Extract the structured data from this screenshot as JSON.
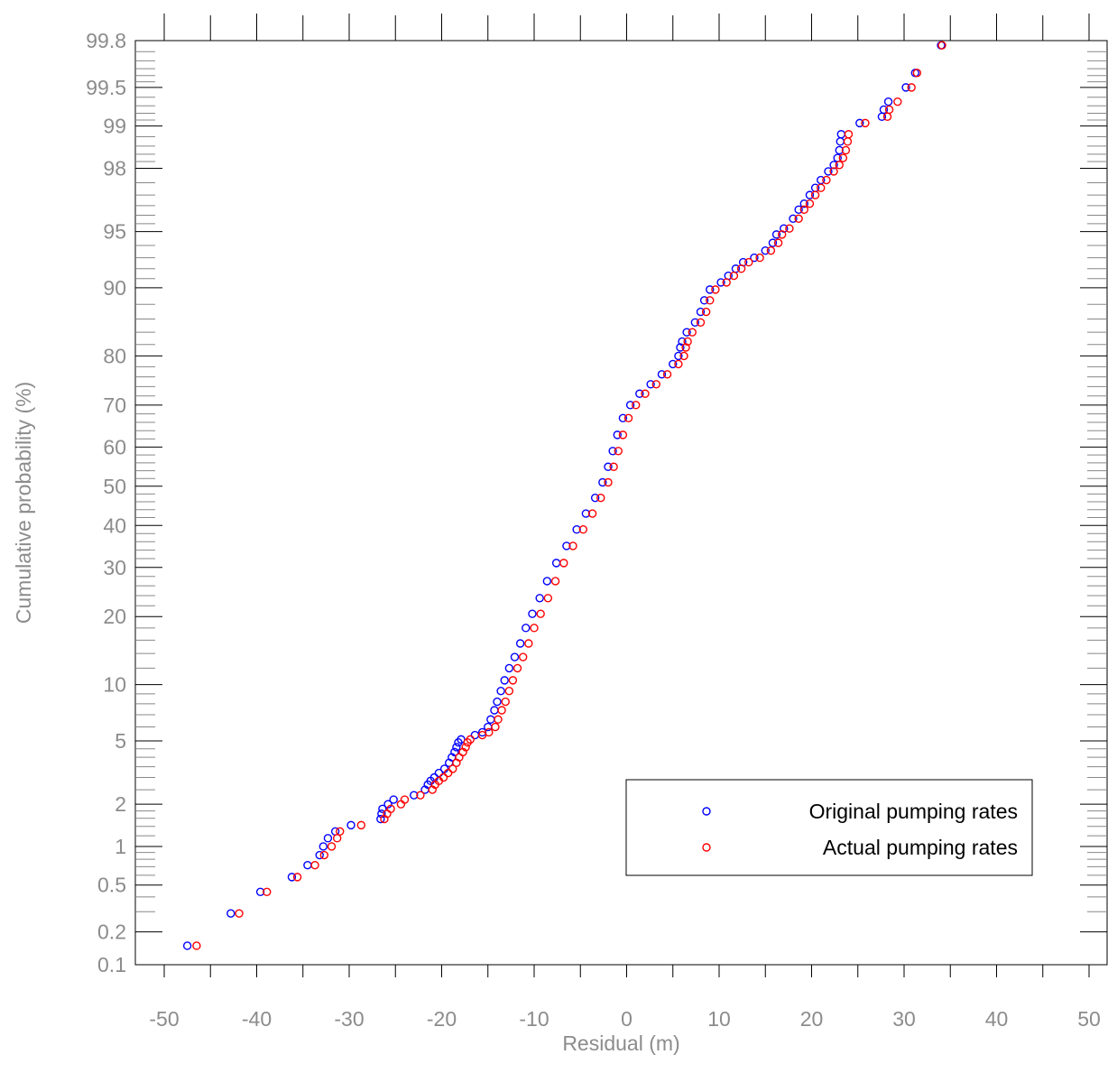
{
  "chart_data": {
    "type": "scatter",
    "title": "",
    "xlabel": "Residual (m)",
    "ylabel": "Cumulative probability (%)",
    "xlim": [
      -50,
      50
    ],
    "ylim": [
      0.1,
      99.8
    ],
    "y_scale": "normal-probability",
    "grid": false,
    "legend_position": "bottom-right",
    "x_ticks": [
      -50,
      -40,
      -30,
      -20,
      -10,
      0,
      10,
      20,
      30,
      40,
      50
    ],
    "y_ticks": [
      0.1,
      0.2,
      0.5,
      1,
      2,
      5,
      10,
      20,
      30,
      40,
      50,
      60,
      70,
      80,
      90,
      95,
      98,
      99,
      99.5,
      99.8
    ],
    "series": [
      {
        "name": "Original pumping rates",
        "color": "#0000ff",
        "marker": "open-circle",
        "points": [
          [
            -47.5,
            0.15
          ],
          [
            -42.8,
            0.29
          ],
          [
            -39.6,
            0.44
          ],
          [
            -36.2,
            0.58
          ],
          [
            -34.5,
            0.72
          ],
          [
            -33.2,
            0.86
          ],
          [
            -32.8,
            1.0
          ],
          [
            -32.3,
            1.15
          ],
          [
            -31.5,
            1.29
          ],
          [
            -29.8,
            1.43
          ],
          [
            -26.6,
            1.58
          ],
          [
            -26.5,
            1.72
          ],
          [
            -26.4,
            1.86
          ],
          [
            -25.8,
            2.0
          ],
          [
            -25.2,
            2.15
          ],
          [
            -23.0,
            2.3
          ],
          [
            -21.8,
            2.5
          ],
          [
            -21.5,
            2.7
          ],
          [
            -21.2,
            2.85
          ],
          [
            -20.8,
            3.0
          ],
          [
            -20.3,
            3.2
          ],
          [
            -19.7,
            3.4
          ],
          [
            -19.2,
            3.7
          ],
          [
            -18.9,
            4.0
          ],
          [
            -18.6,
            4.3
          ],
          [
            -18.4,
            4.6
          ],
          [
            -18.2,
            4.9
          ],
          [
            -17.9,
            5.1
          ],
          [
            -16.4,
            5.4
          ],
          [
            -15.6,
            5.6
          ],
          [
            -15.0,
            6.0
          ],
          [
            -14.7,
            6.6
          ],
          [
            -14.3,
            7.4
          ],
          [
            -14.0,
            8.2
          ],
          [
            -13.6,
            9.3
          ],
          [
            -13.2,
            10.5
          ],
          [
            -12.7,
            12.0
          ],
          [
            -12.1,
            13.5
          ],
          [
            -11.5,
            15.5
          ],
          [
            -10.9,
            18.0
          ],
          [
            -10.2,
            20.5
          ],
          [
            -9.4,
            23.5
          ],
          [
            -8.6,
            27.0
          ],
          [
            -7.6,
            31.0
          ],
          [
            -6.5,
            35.0
          ],
          [
            -5.4,
            39.0
          ],
          [
            -4.4,
            43.0
          ],
          [
            -3.4,
            47.0
          ],
          [
            -2.6,
            51.0
          ],
          [
            -2.0,
            55.0
          ],
          [
            -1.5,
            59.0
          ],
          [
            -1.0,
            63.0
          ],
          [
            -0.4,
            67.0
          ],
          [
            0.4,
            70.0
          ],
          [
            1.4,
            72.5
          ],
          [
            2.6,
            74.5
          ],
          [
            3.8,
            76.5
          ],
          [
            5.0,
            78.5
          ],
          [
            5.6,
            80.0
          ],
          [
            5.8,
            81.5
          ],
          [
            6.0,
            82.5
          ],
          [
            6.5,
            84.0
          ],
          [
            7.4,
            85.5
          ],
          [
            8.0,
            87.0
          ],
          [
            8.4,
            88.5
          ],
          [
            9.0,
            89.8
          ],
          [
            10.2,
            90.6
          ],
          [
            11.0,
            91.3
          ],
          [
            11.8,
            92.0
          ],
          [
            12.6,
            92.6
          ],
          [
            13.8,
            93.0
          ],
          [
            15.0,
            93.6
          ],
          [
            15.8,
            94.2
          ],
          [
            16.2,
            94.8
          ],
          [
            17.0,
            95.2
          ],
          [
            18.0,
            95.8
          ],
          [
            18.6,
            96.3
          ],
          [
            19.2,
            96.6
          ],
          [
            19.8,
            97.0
          ],
          [
            20.4,
            97.3
          ],
          [
            21.0,
            97.6
          ],
          [
            21.8,
            97.9
          ],
          [
            22.4,
            98.1
          ],
          [
            22.8,
            98.3
          ],
          [
            23.0,
            98.5
          ],
          [
            23.1,
            98.7
          ],
          [
            23.2,
            98.85
          ],
          [
            25.2,
            99.05
          ],
          [
            27.6,
            99.15
          ],
          [
            27.8,
            99.25
          ],
          [
            28.3,
            99.35
          ],
          [
            30.2,
            99.5
          ],
          [
            31.2,
            99.62
          ],
          [
            34.0,
            99.78
          ]
        ]
      },
      {
        "name": "Actual pumping rates",
        "color": "#ff0000",
        "marker": "open-circle",
        "points": [
          [
            -46.5,
            0.15
          ],
          [
            -41.9,
            0.29
          ],
          [
            -38.9,
            0.44
          ],
          [
            -35.6,
            0.58
          ],
          [
            -33.7,
            0.72
          ],
          [
            -32.7,
            0.86
          ],
          [
            -31.9,
            1.0
          ],
          [
            -31.3,
            1.15
          ],
          [
            -31.0,
            1.29
          ],
          [
            -28.7,
            1.43
          ],
          [
            -26.2,
            1.58
          ],
          [
            -25.9,
            1.72
          ],
          [
            -25.5,
            1.86
          ],
          [
            -24.4,
            2.0
          ],
          [
            -24.0,
            2.15
          ],
          [
            -22.3,
            2.3
          ],
          [
            -21.0,
            2.5
          ],
          [
            -20.7,
            2.7
          ],
          [
            -20.3,
            2.85
          ],
          [
            -19.8,
            3.0
          ],
          [
            -19.3,
            3.2
          ],
          [
            -18.8,
            3.4
          ],
          [
            -18.4,
            3.7
          ],
          [
            -18.1,
            4.0
          ],
          [
            -17.7,
            4.3
          ],
          [
            -17.4,
            4.6
          ],
          [
            -17.2,
            4.9
          ],
          [
            -16.9,
            5.1
          ],
          [
            -15.6,
            5.4
          ],
          [
            -14.9,
            5.6
          ],
          [
            -14.2,
            6.0
          ],
          [
            -13.9,
            6.6
          ],
          [
            -13.5,
            7.4
          ],
          [
            -13.1,
            8.2
          ],
          [
            -12.7,
            9.3
          ],
          [
            -12.3,
            10.5
          ],
          [
            -11.8,
            12.0
          ],
          [
            -11.2,
            13.5
          ],
          [
            -10.6,
            15.5
          ],
          [
            -10.0,
            18.0
          ],
          [
            -9.3,
            20.5
          ],
          [
            -8.5,
            23.5
          ],
          [
            -7.7,
            27.0
          ],
          [
            -6.8,
            31.0
          ],
          [
            -5.8,
            35.0
          ],
          [
            -4.7,
            39.0
          ],
          [
            -3.7,
            43.0
          ],
          [
            -2.8,
            47.0
          ],
          [
            -2.0,
            51.0
          ],
          [
            -1.4,
            55.0
          ],
          [
            -0.9,
            59.0
          ],
          [
            -0.4,
            63.0
          ],
          [
            0.2,
            67.0
          ],
          [
            1.0,
            70.0
          ],
          [
            2.0,
            72.5
          ],
          [
            3.2,
            74.5
          ],
          [
            4.4,
            76.5
          ],
          [
            5.6,
            78.5
          ],
          [
            6.2,
            80.0
          ],
          [
            6.4,
            81.5
          ],
          [
            6.6,
            82.5
          ],
          [
            7.1,
            84.0
          ],
          [
            8.0,
            85.5
          ],
          [
            8.6,
            87.0
          ],
          [
            9.0,
            88.5
          ],
          [
            9.6,
            89.8
          ],
          [
            10.8,
            90.6
          ],
          [
            11.6,
            91.3
          ],
          [
            12.4,
            92.0
          ],
          [
            13.2,
            92.6
          ],
          [
            14.4,
            93.0
          ],
          [
            15.6,
            93.6
          ],
          [
            16.4,
            94.2
          ],
          [
            16.8,
            94.8
          ],
          [
            17.6,
            95.2
          ],
          [
            18.6,
            95.8
          ],
          [
            19.2,
            96.3
          ],
          [
            19.8,
            96.6
          ],
          [
            20.4,
            97.0
          ],
          [
            21.0,
            97.3
          ],
          [
            21.6,
            97.6
          ],
          [
            22.4,
            97.9
          ],
          [
            23.0,
            98.1
          ],
          [
            23.4,
            98.3
          ],
          [
            23.7,
            98.5
          ],
          [
            23.9,
            98.7
          ],
          [
            24.0,
            98.85
          ],
          [
            25.8,
            99.05
          ],
          [
            28.2,
            99.15
          ],
          [
            28.4,
            99.25
          ],
          [
            29.3,
            99.35
          ],
          [
            30.8,
            99.5
          ],
          [
            31.4,
            99.62
          ],
          [
            34.1,
            99.78
          ]
        ]
      }
    ]
  }
}
